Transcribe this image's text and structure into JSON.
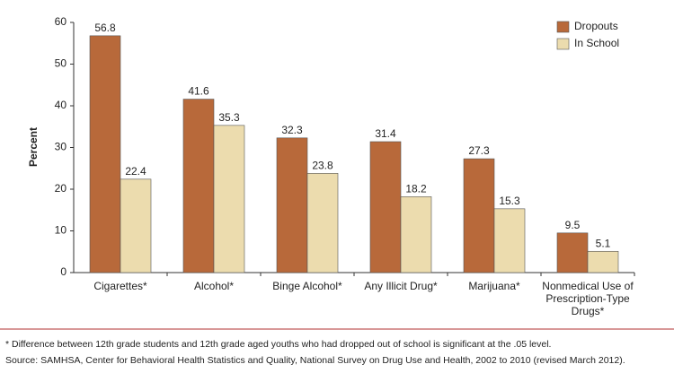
{
  "chart_data": {
    "type": "bar",
    "y_label": "Percent",
    "categories": [
      "Cigarettes*",
      "Alcohol*",
      "Binge Alcohol*",
      "Any Illicit Drug*",
      "Marijuana*",
      "Nonmedical Use of Prescription-Type Drugs*"
    ],
    "series": [
      {
        "name": "Dropouts",
        "color": "#b8693a",
        "values": [
          56.8,
          41.6,
          32.3,
          31.4,
          27.3,
          9.5
        ]
      },
      {
        "name": "In School",
        "color": "#ecdcae",
        "values": [
          22.4,
          35.3,
          23.8,
          18.2,
          15.3,
          5.1
        ]
      }
    ],
    "ylim": [
      0,
      60
    ],
    "yticks": [
      0,
      10,
      20,
      30,
      40,
      50,
      60
    ],
    "legend": "top-right",
    "footnote": "* Difference between 12th grade students and 12th grade aged youths who had dropped out of school is significant at the .05 level.",
    "source": "Source: SAMHSA, Center for Behavioral Health Statistics and Quality, National Survey on Drug Use and Health, 2002 to 2010 (revised March 2012)."
  }
}
